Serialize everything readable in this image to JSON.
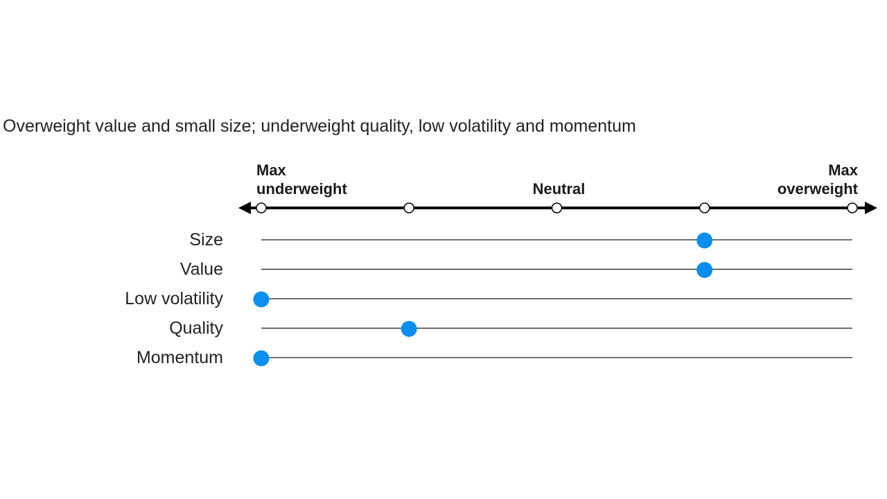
{
  "subtitle": "Overweight value and small size; underweight quality, low volatility and momentum",
  "colors": {
    "marker": "#0a8fef",
    "axis": "#000000",
    "track": "#1a1a1a"
  },
  "chart_data": {
    "type": "dot-scale",
    "scale_labels": {
      "left": [
        "Max",
        "underweight"
      ],
      "center": [
        "Neutral"
      ],
      "right": [
        "Max",
        "overweight"
      ]
    },
    "scale_positions": [
      -2,
      -1,
      0,
      1,
      2
    ],
    "series": [
      {
        "name": "Size",
        "value": 1
      },
      {
        "name": "Value",
        "value": 1
      },
      {
        "name": "Low volatility",
        "value": -2
      },
      {
        "name": "Quality",
        "value": -1
      },
      {
        "name": "Momentum",
        "value": -2
      }
    ]
  }
}
